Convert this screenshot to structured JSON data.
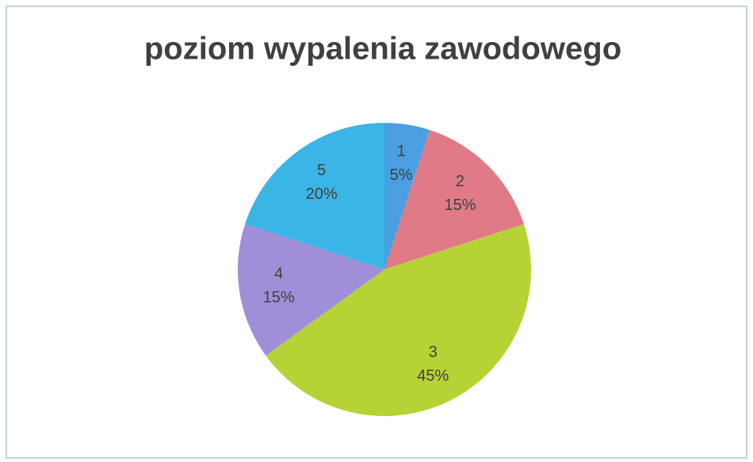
{
  "chart_data": {
    "type": "pie",
    "title": "poziom wypalenia zawodowego",
    "categories": [
      "1",
      "2",
      "3",
      "4",
      "5"
    ],
    "values": [
      5,
      15,
      45,
      15,
      20
    ],
    "value_labels": [
      "5%",
      "15%",
      "45%",
      "15%",
      "20%"
    ],
    "colors": [
      "#4a9fe0",
      "#e07a86",
      "#b5d334",
      "#a08fd8",
      "#3bb4e6"
    ]
  }
}
